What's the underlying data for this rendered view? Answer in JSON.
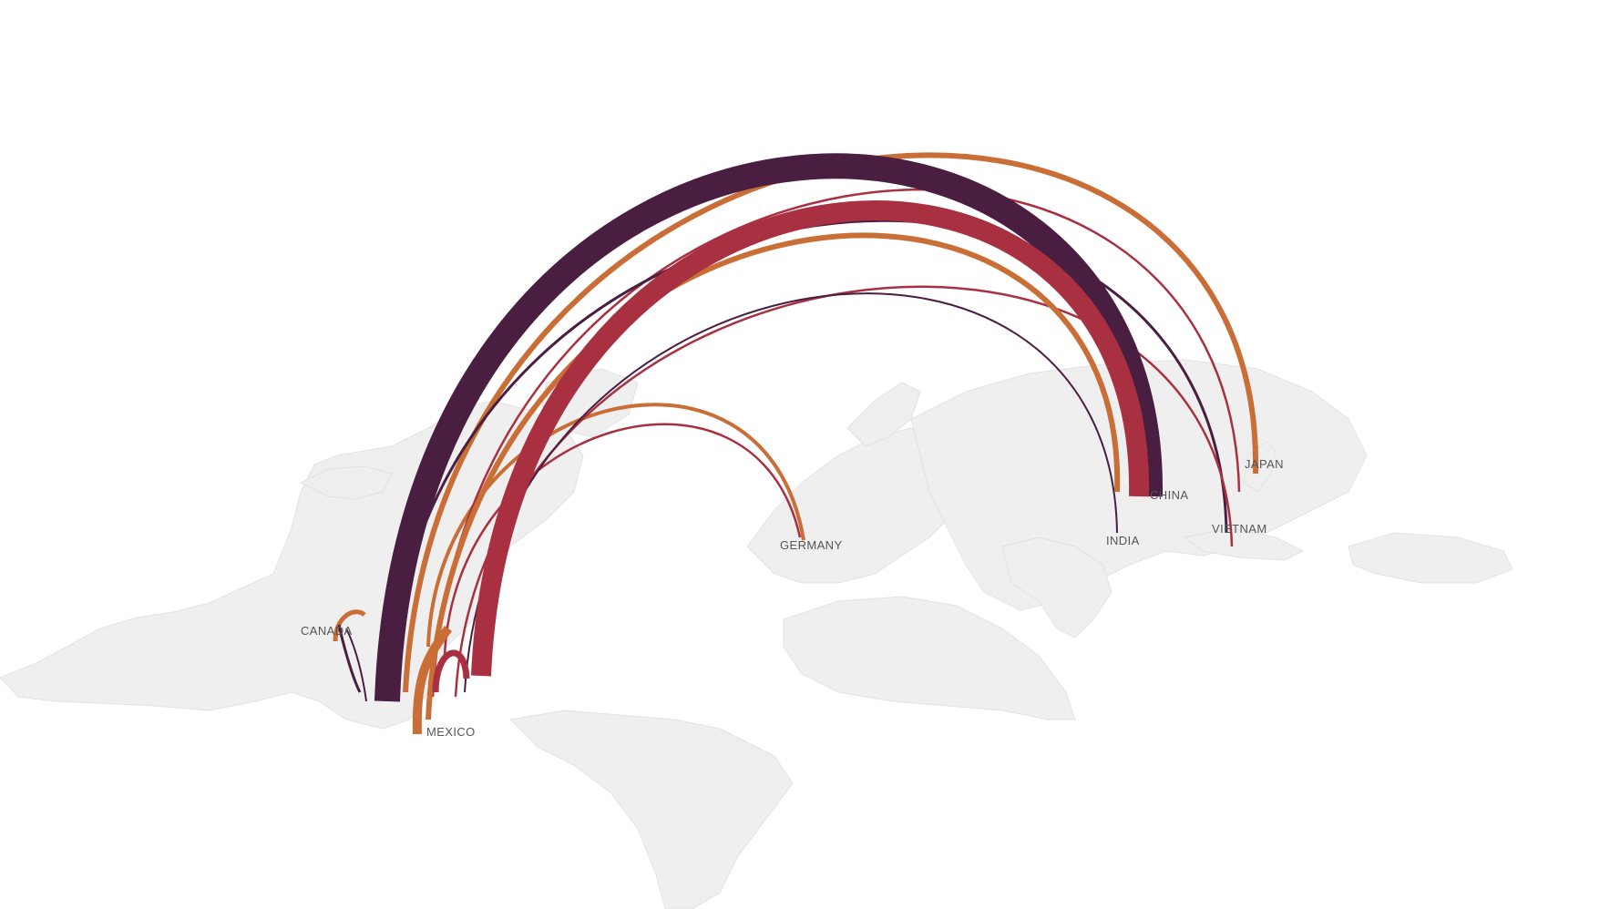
{
  "colors": {
    "land": "#efefef",
    "land_border": "#e2e2e2",
    "label": "#555555",
    "flow_dark": "#4a1e40",
    "flow_red": "#a93040",
    "flow_orange": "#c96e36"
  },
  "labels": {
    "canada": "CANADA",
    "mexico": "MEXICO",
    "germany": "GERMANY",
    "china": "CHINA",
    "india": "INDIA",
    "japan": "JAPAN",
    "vietnam": "VIETNAM"
  }
}
